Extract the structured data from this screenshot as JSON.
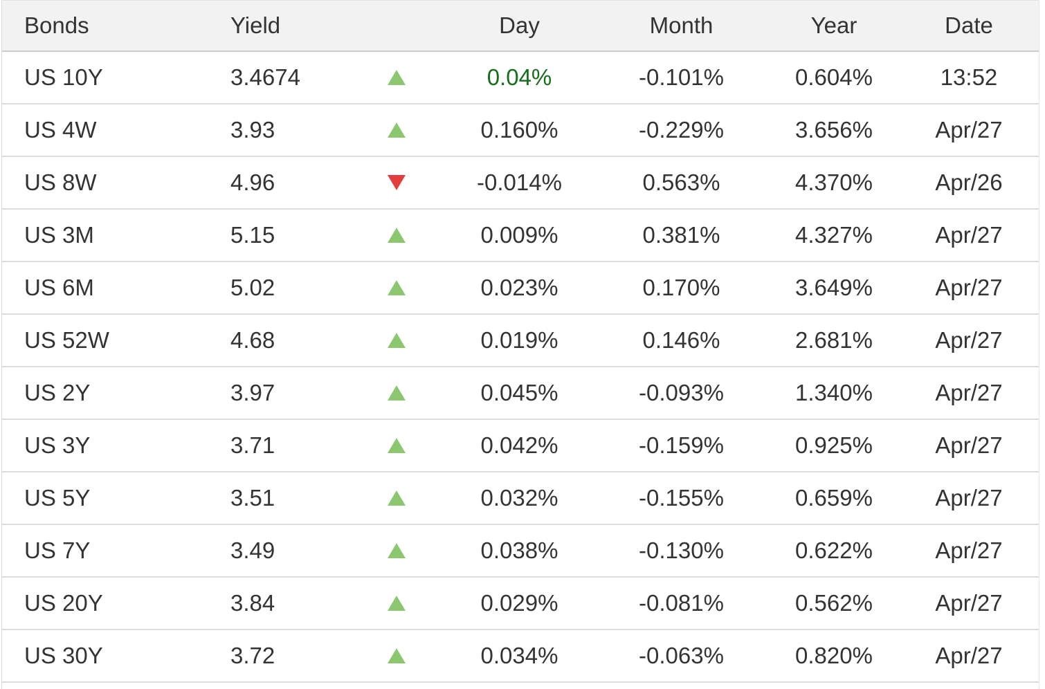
{
  "colors": {
    "up_triangle": "#8cc66e",
    "down_triangle": "#e23d3b",
    "day_highlight_green": "#176d1b",
    "header_background": "#f2f2f2",
    "row_border": "#dcdcdc",
    "text": "#333333"
  },
  "table": {
    "columns": [
      "Bonds",
      "Yield",
      "",
      "Day",
      "Month",
      "Year",
      "Date"
    ],
    "rows": [
      {
        "bond": "US 10Y",
        "yield": "3.4674",
        "direction": "up",
        "day": "0.04%",
        "day_green": true,
        "month": "-0.101%",
        "year": "0.604%",
        "date": "13:52"
      },
      {
        "bond": "US 4W",
        "yield": "3.93",
        "direction": "up",
        "day": "0.160%",
        "day_green": false,
        "month": "-0.229%",
        "year": "3.656%",
        "date": "Apr/27"
      },
      {
        "bond": "US 8W",
        "yield": "4.96",
        "direction": "down",
        "day": "-0.014%",
        "day_green": false,
        "month": "0.563%",
        "year": "4.370%",
        "date": "Apr/26"
      },
      {
        "bond": "US 3M",
        "yield": "5.15",
        "direction": "up",
        "day": "0.009%",
        "day_green": false,
        "month": "0.381%",
        "year": "4.327%",
        "date": "Apr/27"
      },
      {
        "bond": "US 6M",
        "yield": "5.02",
        "direction": "up",
        "day": "0.023%",
        "day_green": false,
        "month": "0.170%",
        "year": "3.649%",
        "date": "Apr/27"
      },
      {
        "bond": "US 52W",
        "yield": "4.68",
        "direction": "up",
        "day": "0.019%",
        "day_green": false,
        "month": "0.146%",
        "year": "2.681%",
        "date": "Apr/27"
      },
      {
        "bond": "US 2Y",
        "yield": "3.97",
        "direction": "up",
        "day": "0.045%",
        "day_green": false,
        "month": "-0.093%",
        "year": "1.340%",
        "date": "Apr/27"
      },
      {
        "bond": "US 3Y",
        "yield": "3.71",
        "direction": "up",
        "day": "0.042%",
        "day_green": false,
        "month": "-0.159%",
        "year": "0.925%",
        "date": "Apr/27"
      },
      {
        "bond": "US 5Y",
        "yield": "3.51",
        "direction": "up",
        "day": "0.032%",
        "day_green": false,
        "month": "-0.155%",
        "year": "0.659%",
        "date": "Apr/27"
      },
      {
        "bond": "US 7Y",
        "yield": "3.49",
        "direction": "up",
        "day": "0.038%",
        "day_green": false,
        "month": "-0.130%",
        "year": "0.622%",
        "date": "Apr/27"
      },
      {
        "bond": "US 20Y",
        "yield": "3.84",
        "direction": "up",
        "day": "0.029%",
        "day_green": false,
        "month": "-0.081%",
        "year": "0.562%",
        "date": "Apr/27"
      },
      {
        "bond": "US 30Y",
        "yield": "3.72",
        "direction": "up",
        "day": "0.034%",
        "day_green": false,
        "month": "-0.063%",
        "year": "0.820%",
        "date": "Apr/27"
      }
    ]
  }
}
